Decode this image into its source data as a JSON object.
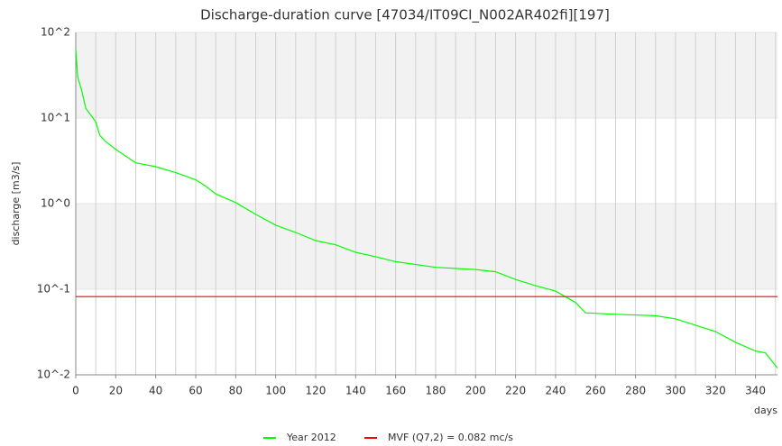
{
  "chart_data": {
    "type": "line",
    "title": "Discharge-duration curve [47034/IT09CI_N002AR402fi][197]",
    "y_label": "discharge [m3/s]",
    "x_label": "days",
    "log_y": true,
    "grid": true,
    "xlim": [
      0,
      351
    ],
    "xticks": [
      0,
      20,
      40,
      60,
      80,
      100,
      120,
      140,
      160,
      180,
      200,
      220,
      240,
      260,
      280,
      300,
      320,
      340
    ],
    "ylim": [
      0.01,
      100
    ],
    "yticks": [
      {
        "value": 0.01,
        "label": "10^-2"
      },
      {
        "value": 0.1,
        "label": "10^-1"
      },
      {
        "value": 1,
        "label": "10^0"
      },
      {
        "value": 10,
        "label": "10^1"
      },
      {
        "value": 100,
        "label": "10^2"
      }
    ],
    "series": [
      {
        "name": "Year 2012",
        "color": "#00ff00",
        "x": [
          0,
          1,
          3,
          5,
          10,
          12,
          15,
          18,
          20,
          25,
          30,
          40,
          50,
          55,
          60,
          65,
          70,
          80,
          90,
          100,
          110,
          120,
          130,
          140,
          150,
          160,
          180,
          200,
          210,
          220,
          230,
          240,
          250,
          255,
          270,
          290,
          300,
          310,
          320,
          330,
          340,
          345,
          351
        ],
        "values": [
          63,
          30,
          21,
          13,
          9.0,
          6.3,
          5.3,
          4.7,
          4.3,
          3.6,
          3.0,
          2.7,
          2.3,
          2.1,
          1.9,
          1.6,
          1.3,
          1.03,
          0.75,
          0.56,
          0.46,
          0.37,
          0.33,
          0.27,
          0.24,
          0.21,
          0.18,
          0.17,
          0.16,
          0.13,
          0.11,
          0.095,
          0.07,
          0.053,
          0.051,
          0.049,
          0.045,
          0.038,
          0.032,
          0.024,
          0.019,
          0.018,
          0.012
        ]
      },
      {
        "name": "MVF (Q7,2) = 0.082 mc/s",
        "color": "#ff0000",
        "x": [
          0,
          351
        ],
        "values": [
          0.082,
          0.082
        ]
      }
    ]
  }
}
